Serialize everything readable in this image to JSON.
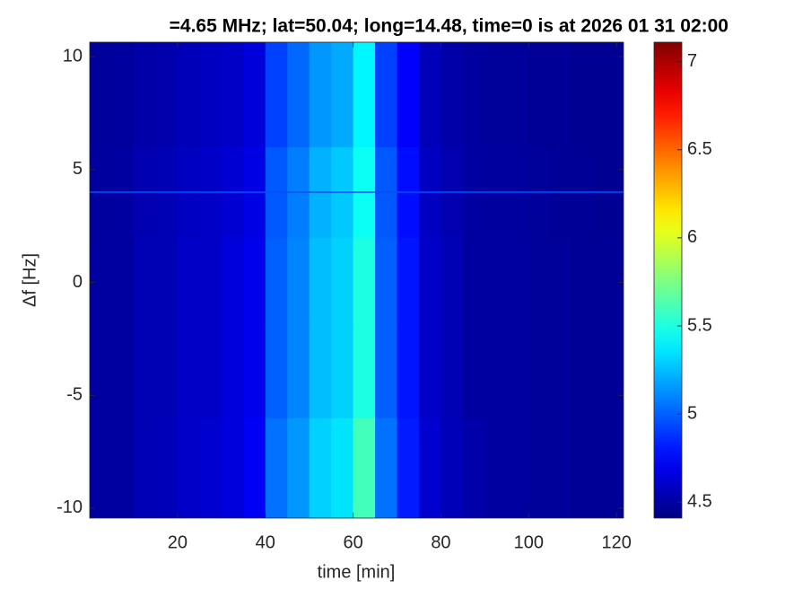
{
  "chart_data": {
    "type": "heatmap",
    "title": "=4.65 MHz;  lat=50.04; long=14.48, time=0 is at 2026 01 31 02:00",
    "x_label": "time [min]",
    "y_label": "Δf [Hz]",
    "xlim": [
      0,
      121.6
    ],
    "xticks": [
      20,
      40,
      60,
      80,
      100,
      120
    ],
    "ylim": [
      -10.44,
      10.64
    ],
    "yticks": [
      -10,
      -5,
      0,
      5,
      10
    ],
    "clim": [
      4.41,
      7.11
    ],
    "cticks": [
      4.5,
      5,
      5.5,
      6,
      6.5,
      7
    ],
    "colormap": "jet",
    "x_edges": [
      0,
      5,
      10,
      15,
      20,
      25,
      30,
      35,
      40,
      45,
      50,
      55,
      60,
      65,
      70,
      75,
      80,
      85,
      90,
      95,
      100,
      105,
      110,
      115,
      121.6
    ],
    "y_edges": [
      -10.44,
      -6,
      -2,
      2,
      6,
      10.64
    ],
    "z": [
      [
        4.5,
        4.5,
        4.55,
        4.56,
        4.6,
        4.62,
        4.66,
        4.72,
        5.05,
        5.15,
        5.3,
        5.35,
        5.6,
        5.05,
        4.82,
        4.62,
        4.56,
        4.52,
        4.5,
        4.5,
        4.48,
        4.48,
        4.47,
        4.47
      ],
      [
        4.5,
        4.5,
        4.55,
        4.55,
        4.6,
        4.6,
        4.65,
        4.7,
        5.0,
        5.1,
        5.25,
        5.3,
        5.5,
        5.0,
        4.8,
        4.6,
        4.55,
        4.5,
        4.5,
        4.5,
        4.48,
        4.48,
        4.47,
        4.47
      ],
      [
        4.5,
        4.5,
        4.55,
        4.55,
        4.6,
        4.6,
        4.65,
        4.7,
        5.0,
        5.1,
        5.25,
        5.3,
        5.5,
        5.0,
        4.8,
        4.6,
        4.55,
        4.5,
        4.5,
        4.5,
        4.48,
        4.48,
        4.47,
        4.47
      ],
      [
        4.49,
        4.5,
        4.54,
        4.55,
        4.58,
        4.6,
        4.63,
        4.68,
        4.98,
        5.08,
        5.22,
        5.28,
        5.45,
        4.98,
        4.78,
        4.58,
        4.54,
        4.5,
        4.49,
        4.49,
        4.48,
        4.47,
        4.47,
        4.46
      ],
      [
        4.48,
        4.49,
        4.52,
        4.53,
        4.56,
        4.58,
        4.6,
        4.65,
        4.92,
        5.02,
        5.15,
        5.2,
        5.4,
        4.92,
        4.74,
        4.56,
        4.52,
        4.49,
        4.48,
        4.48,
        4.47,
        4.47,
        4.46,
        4.46
      ]
    ],
    "line": {
      "y": 4,
      "value": 4.95
    }
  }
}
